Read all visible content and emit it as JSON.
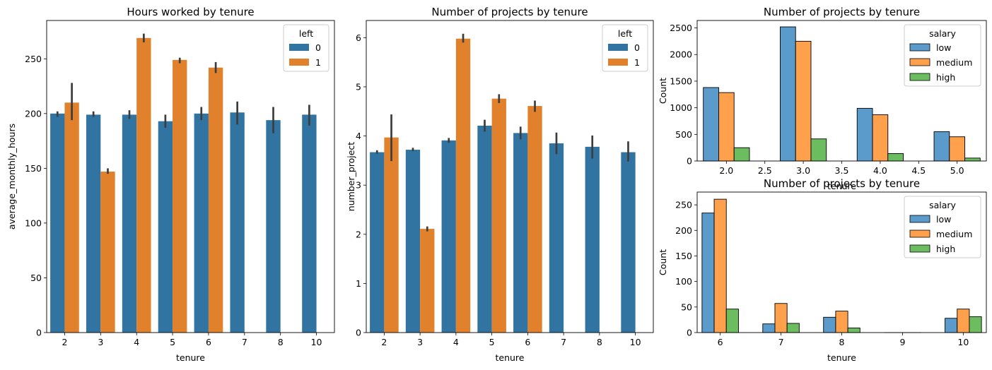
{
  "chart_data": [
    {
      "type": "bar",
      "title": "Hours worked by tenure",
      "xlabel": "tenure",
      "ylabel": "average_monthly_hours",
      "ylim": [
        0,
        285
      ],
      "yticks": [
        0,
        50,
        100,
        150,
        200,
        250
      ],
      "categories": [
        "2",
        "3",
        "4",
        "5",
        "6",
        "7",
        "8",
        "10"
      ],
      "legend": {
        "title": "left",
        "position": "upper right"
      },
      "series": [
        {
          "name": "0",
          "color": "#3274a1",
          "values": [
            200,
            199,
            199,
            193,
            200,
            201,
            194,
            199
          ],
          "err_low": [
            197,
            197,
            195,
            187,
            194,
            190,
            182,
            189
          ],
          "err_high": [
            202,
            202,
            203,
            199,
            206,
            211,
            206,
            208
          ]
        },
        {
          "name": "1",
          "color": "#e1812c",
          "values": [
            210,
            147,
            269,
            249,
            242,
            null,
            null,
            null
          ],
          "err_low": [
            194,
            145,
            265,
            246,
            237,
            null,
            null,
            null
          ],
          "err_high": [
            228,
            150,
            273,
            251,
            247,
            null,
            null,
            null
          ]
        }
      ]
    },
    {
      "type": "bar",
      "title": "Number of projects by tenure",
      "xlabel": "tenure",
      "ylabel": "number_project",
      "ylim": [
        0,
        6.35
      ],
      "yticks": [
        0,
        1,
        2,
        3,
        4,
        5,
        6
      ],
      "categories": [
        "2",
        "3",
        "4",
        "5",
        "6",
        "7",
        "8",
        "10"
      ],
      "legend": {
        "title": "left",
        "position": "upper right"
      },
      "series": [
        {
          "name": "0",
          "color": "#3274a1",
          "values": [
            3.67,
            3.72,
            3.91,
            4.21,
            4.06,
            3.85,
            3.78,
            3.67
          ],
          "err_low": [
            3.64,
            3.69,
            3.86,
            4.09,
            3.93,
            3.63,
            3.54,
            3.48
          ],
          "err_high": [
            3.71,
            3.76,
            3.96,
            4.33,
            4.19,
            4.07,
            4.01,
            3.89
          ]
        },
        {
          "name": "1",
          "color": "#e1812c",
          "values": [
            3.97,
            2.11,
            5.98,
            4.76,
            4.61,
            null,
            null,
            null
          ],
          "err_low": [
            3.49,
            2.06,
            5.9,
            4.67,
            4.49,
            null,
            null,
            null
          ],
          "err_high": [
            4.44,
            2.16,
            6.08,
            4.85,
            4.72,
            null,
            null,
            null
          ]
        }
      ]
    },
    {
      "type": "bar",
      "title": "Number of projects by tenure",
      "xlabel": "tenure",
      "ylabel": "Count",
      "xlim": [
        1.62,
        5.38
      ],
      "xticks": [
        "2.0",
        "2.5",
        "3.0",
        "3.5",
        "4.0",
        "4.5",
        "5.0"
      ],
      "ylim": [
        0,
        2640
      ],
      "yticks": [
        0,
        500,
        1000,
        1500,
        2000,
        2500
      ],
      "legend": {
        "title": "salary",
        "position": "upper right"
      },
      "x": [
        2,
        3,
        4,
        5
      ],
      "series": [
        {
          "name": "low",
          "color": "#5b9bcc",
          "values": [
            1380,
            2520,
            990,
            550
          ]
        },
        {
          "name": "medium",
          "color": "#ffa04d",
          "values": [
            1285,
            2250,
            870,
            455
          ]
        },
        {
          "name": "high",
          "color": "#6bbd5f",
          "values": [
            250,
            415,
            140,
            55
          ]
        }
      ]
    },
    {
      "type": "bar",
      "title": "Number of projects by tenure",
      "xlabel": "tenure",
      "ylabel": "Count",
      "xlim": [
        5.62,
        10.38
      ],
      "xticks": [
        "6",
        "7",
        "8",
        "9",
        "10"
      ],
      "ylim": [
        0,
        275
      ],
      "yticks": [
        0,
        50,
        100,
        150,
        200,
        250
      ],
      "legend": {
        "title": "salary",
        "position": "upper right"
      },
      "x": [
        6,
        7,
        8,
        9,
        10
      ],
      "series": [
        {
          "name": "low",
          "color": "#5b9bcc",
          "values": [
            234,
            17,
            30,
            0,
            28
          ]
        },
        {
          "name": "medium",
          "color": "#ffa04d",
          "values": [
            261,
            57,
            42,
            0,
            46
          ]
        },
        {
          "name": "high",
          "color": "#6bbd5f",
          "values": [
            46,
            18,
            9,
            0,
            31
          ]
        }
      ]
    }
  ]
}
